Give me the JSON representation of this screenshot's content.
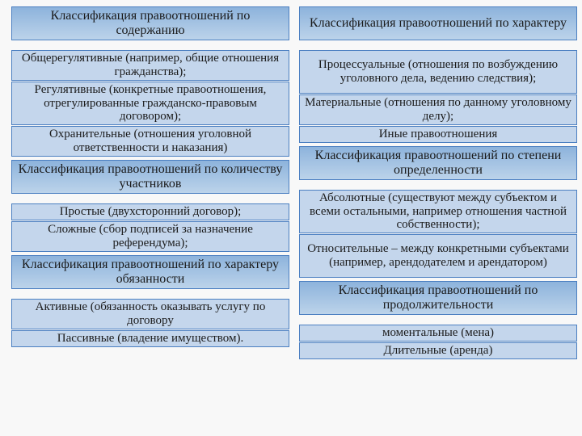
{
  "layout": {
    "title_font_size": 16,
    "item_font_size": 15,
    "colors": {
      "title_bg_top": "#8db3dc",
      "title_bg_bottom": "#bcd3ea",
      "title_border": "#4b7fc1",
      "item_bg": "#c4d6ec",
      "item_border": "#4b7fc1",
      "text": "#1a1a1a",
      "page_bg": "#f8f8f8"
    },
    "title_height": 42,
    "item_height_1": 21,
    "item_height_2": 38,
    "item_height_3": 54,
    "gap_after_title": 12,
    "gap_between_items": 1,
    "gap_before_next_title": 4
  },
  "left": [
    {
      "kind": "title",
      "text": "Классификация правоотношений по содержанию"
    },
    {
      "kind": "gap-after-title"
    },
    {
      "kind": "item",
      "lines": 2,
      "text": "Общерегулятивные (например, общие отношения гражданства);"
    },
    {
      "kind": "gap"
    },
    {
      "kind": "item",
      "lines": 3,
      "text": "Регулятивные (конкретные правоотношения, отрегулированные гражданско-правовым договором);"
    },
    {
      "kind": "gap"
    },
    {
      "kind": "item",
      "lines": 2,
      "text": "Охранительные (отношения уголовной ответственности и наказания)"
    },
    {
      "kind": "gap-title"
    },
    {
      "kind": "title",
      "text": "Классификация правоотношений по количеству участников"
    },
    {
      "kind": "gap-after-title"
    },
    {
      "kind": "item",
      "lines": 1,
      "text": "Простые (двухсторонний договор);"
    },
    {
      "kind": "gap"
    },
    {
      "kind": "item",
      "lines": 2,
      "text": "Сложные (сбор подписей за назначение референдума);"
    },
    {
      "kind": "gap-title"
    },
    {
      "kind": "title",
      "text": "Классификация правоотношений по характеру обязанности"
    },
    {
      "kind": "gap-after-title"
    },
    {
      "kind": "item",
      "lines": 2,
      "text": "Активные (обязанность оказывать услугу по договору"
    },
    {
      "kind": "gap"
    },
    {
      "kind": "item",
      "lines": 1,
      "text": "Пассивные (владение имуществом)."
    }
  ],
  "right": [
    {
      "kind": "title",
      "text": "Классификация правоотношений по характеру"
    },
    {
      "kind": "gap-after-title"
    },
    {
      "kind": "item",
      "lines": 3,
      "text": "Процессуальные (отношения по возбуждению уголовного дела, ведению следствия);"
    },
    {
      "kind": "gap"
    },
    {
      "kind": "item",
      "lines": 2,
      "text": "Материальные (отношения по данному уголовному делу);"
    },
    {
      "kind": "gap"
    },
    {
      "kind": "item",
      "lines": 1,
      "text": "Иные правоотношения"
    },
    {
      "kind": "gap-title"
    },
    {
      "kind": "title",
      "text": "Классификация правоотношений по степени определенности"
    },
    {
      "kind": "gap-after-title"
    },
    {
      "kind": "item",
      "lines": 3,
      "text": "Абсолютные (существуют между субъектом и всеми остальными, например отношения частной собственности);"
    },
    {
      "kind": "gap"
    },
    {
      "kind": "item",
      "lines": 3,
      "text": "Относительные – между конкретными субъектами (например, арендодателем и арендатором)"
    },
    {
      "kind": "gap-title"
    },
    {
      "kind": "title",
      "text": "Классификация правоотношений по продолжительности"
    },
    {
      "kind": "gap-after-title"
    },
    {
      "kind": "item",
      "lines": 1,
      "text": "моментальные (мена)"
    },
    {
      "kind": "gap"
    },
    {
      "kind": "item",
      "lines": 1,
      "text": "Длительные (аренда)"
    }
  ]
}
